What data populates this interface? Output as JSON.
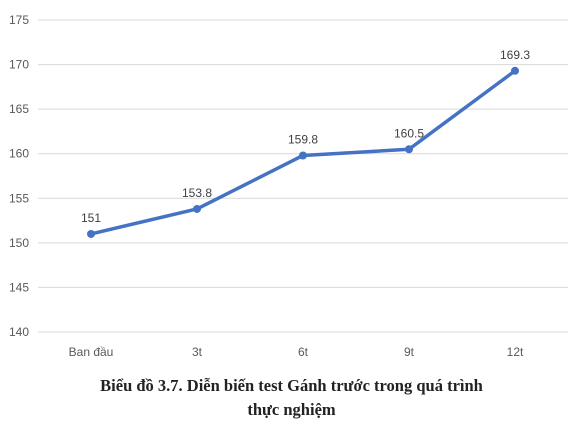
{
  "chart_data": {
    "type": "line",
    "categories": [
      "Ban đầu",
      "3t",
      "6t",
      "9t",
      "12t"
    ],
    "series": [
      {
        "values": [
          151,
          153.8,
          159.8,
          160.5,
          169.3
        ],
        "color": "#4472c4"
      }
    ],
    "data_labels": [
      "151",
      "153.8",
      "159.8",
      "160.5",
      "169.3"
    ],
    "y_ticks": [
      "140",
      "145",
      "150",
      "155",
      "160",
      "165",
      "170",
      "175"
    ],
    "ylim": [
      140,
      175
    ],
    "grid": true,
    "legend": "none",
    "caption_lines": [
      "Biểu đồ 3.7. Diễn biến test Gánh trước trong quá trình",
      "thực nghiệm"
    ]
  }
}
